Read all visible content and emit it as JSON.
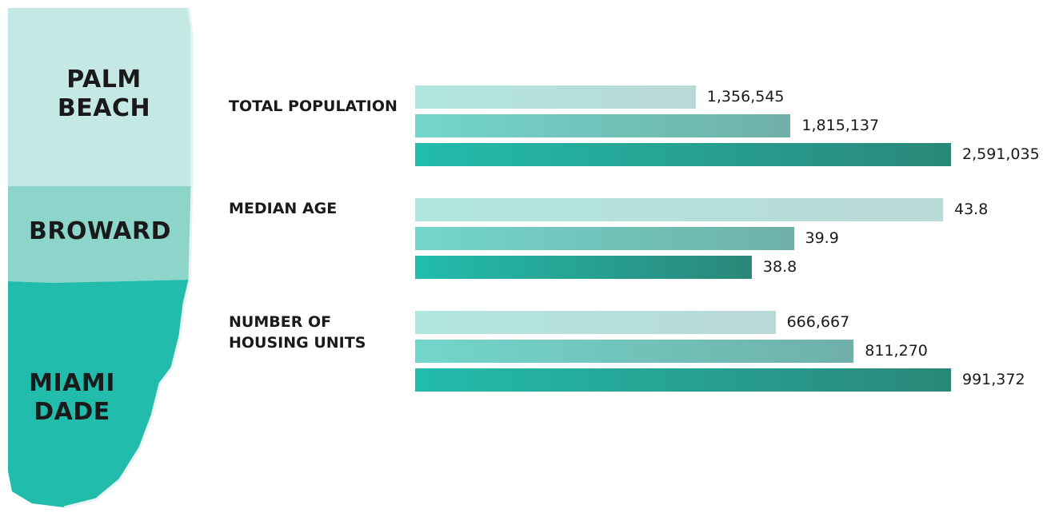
{
  "map": {
    "counties": [
      {
        "name_lines": [
          "PALM",
          "BEACH"
        ],
        "color": "#c4e9e4"
      },
      {
        "name_lines": [
          "BROWARD"
        ],
        "color": "#8dd5cb"
      },
      {
        "name_lines": [
          "MIAMI",
          "DADE"
        ],
        "color": "#22bcad"
      }
    ]
  },
  "chart_data": {
    "type": "bar",
    "orientation": "horizontal",
    "groups": [
      "TOTAL POPULATION",
      "MEDIAN AGE",
      "NUMBER OF HOUSING UNITS"
    ],
    "group_label_lines": [
      [
        "TOTAL POPULATION"
      ],
      [
        "MEDIAN AGE"
      ],
      [
        "NUMBER OF",
        "HOUSING UNITS"
      ]
    ],
    "series_colors": [
      "#b2e6e1",
      "#73d6cb",
      "#22bcad"
    ],
    "series": [
      {
        "values": [
          1356545,
          43.8,
          666667
        ],
        "labels": [
          "1,356,545",
          "43.8",
          "666,667"
        ]
      },
      {
        "values": [
          1815137,
          39.9,
          811270
        ],
        "labels": [
          "1,815,137",
          "39.9",
          "811,270"
        ]
      },
      {
        "values": [
          2591035,
          38.8,
          991372
        ],
        "labels": [
          "2,591,035",
          "38.8",
          "991,372"
        ]
      }
    ]
  }
}
